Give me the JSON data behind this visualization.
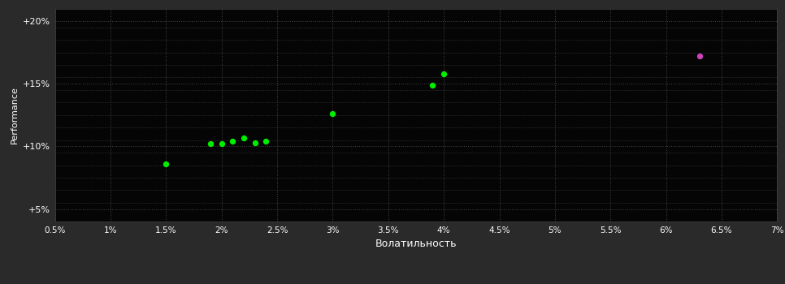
{
  "background_color": "#2a2a2a",
  "plot_bg_color": "#050505",
  "grid_color": "#444444",
  "text_color": "#ffffff",
  "xlabel": "Волатильность",
  "ylabel": "Performance",
  "xlim": [
    0.005,
    0.07
  ],
  "ylim": [
    0.04,
    0.21
  ],
  "xticks": [
    0.005,
    0.01,
    0.015,
    0.02,
    0.025,
    0.03,
    0.035,
    0.04,
    0.045,
    0.05,
    0.055,
    0.06,
    0.065,
    0.07
  ],
  "xtick_labels": [
    "0.5%",
    "1%",
    "1.5%",
    "2%",
    "2.5%",
    "3%",
    "3.5%",
    "4%",
    "4.5%",
    "5%",
    "5.5%",
    "6%",
    "6.5%",
    "7%"
  ],
  "yticks": [
    0.05,
    0.1,
    0.15,
    0.2
  ],
  "ytick_labels": [
    "+5%",
    "+10%",
    "+15%",
    "+20%"
  ],
  "minor_yticks": [
    0.055,
    0.065,
    0.075,
    0.085,
    0.095,
    0.105,
    0.115,
    0.125,
    0.135,
    0.145,
    0.155,
    0.165,
    0.175,
    0.185,
    0.195
  ],
  "green_points": [
    [
      0.015,
      0.086
    ],
    [
      0.019,
      0.102
    ],
    [
      0.02,
      0.102
    ],
    [
      0.021,
      0.104
    ],
    [
      0.022,
      0.107
    ],
    [
      0.023,
      0.103
    ],
    [
      0.024,
      0.104
    ],
    [
      0.03,
      0.126
    ],
    [
      0.039,
      0.149
    ],
    [
      0.04,
      0.158
    ]
  ],
  "magenta_points": [
    [
      0.063,
      0.172
    ]
  ],
  "green_color": "#00ee00",
  "magenta_color": "#cc44bb",
  "marker_size": 28
}
